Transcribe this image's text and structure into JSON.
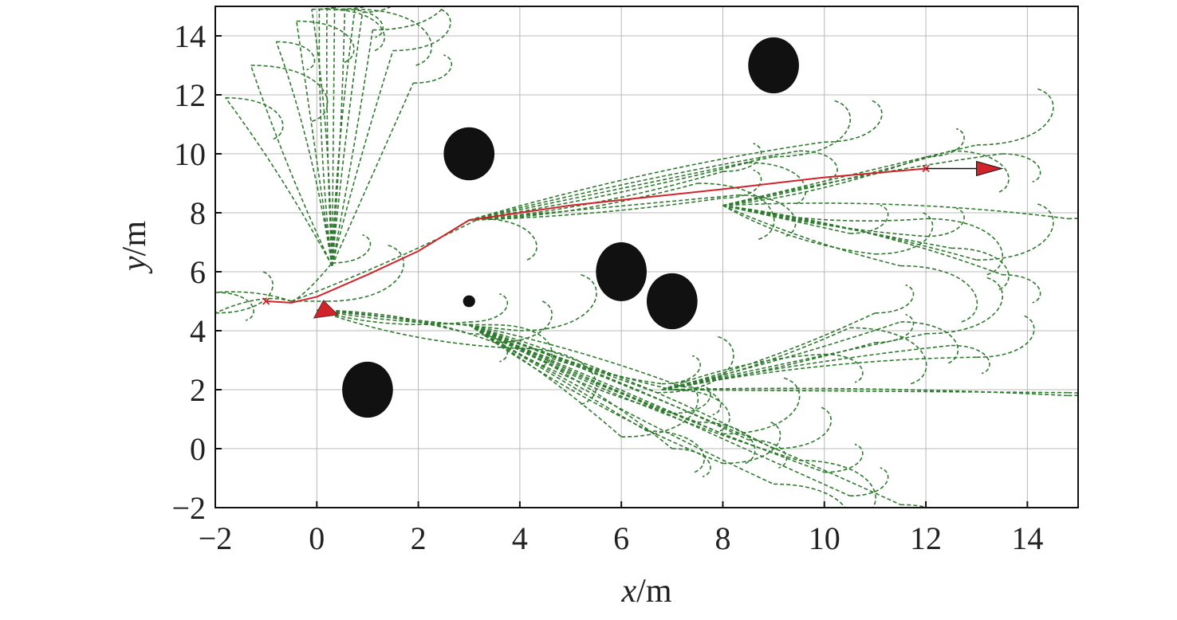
{
  "chart_data": {
    "type": "scatter",
    "title": "",
    "xlabel": {
      "var": "x",
      "unit": "/m"
    },
    "ylabel": {
      "var": "y",
      "unit": "/m"
    },
    "xlim": [
      -2,
      15
    ],
    "ylim": [
      -2,
      15
    ],
    "xticks": [
      -2,
      0,
      2,
      4,
      6,
      8,
      10,
      12,
      14
    ],
    "yticks": [
      -2,
      0,
      2,
      4,
      6,
      8,
      10,
      12,
      14
    ],
    "grid": true,
    "colors": {
      "candidate_trajectories": "#2f7a2f",
      "planned_path": "#d2232a",
      "obstacles": "#111111",
      "goal_arrow": "#111111"
    },
    "obstacles": [
      {
        "cx": 3,
        "cy": 10,
        "rx": 0.5,
        "ry": 0.9
      },
      {
        "cx": 9,
        "cy": 13,
        "rx": 0.5,
        "ry": 0.95
      },
      {
        "cx": 6,
        "cy": 6,
        "rx": 0.5,
        "ry": 1.0
      },
      {
        "cx": 7,
        "cy": 5,
        "rx": 0.5,
        "ry": 0.95
      },
      {
        "cx": 1,
        "cy": 2,
        "rx": 0.5,
        "ry": 0.95
      },
      {
        "cx": 3,
        "cy": 5,
        "rx": 0.12,
        "ry": 0.2
      }
    ],
    "planned_path": [
      [
        -1,
        5
      ],
      [
        -0.5,
        4.95
      ],
      [
        0,
        5.15
      ],
      [
        1,
        5.9
      ],
      [
        2,
        6.7
      ],
      [
        3,
        7.75
      ],
      [
        5,
        8.25
      ],
      [
        8,
        8.8
      ],
      [
        10,
        9.2
      ],
      [
        12,
        9.5
      ]
    ],
    "start_marker": {
      "x": -1,
      "y": 5
    },
    "goal_marker": {
      "x": 12,
      "y": 9.5
    },
    "heading_arrow": {
      "from": [
        12,
        9.5
      ],
      "to": [
        13.5,
        9.5
      ]
    },
    "robot_marker": {
      "x": 0.1,
      "y": 4.65
    },
    "trajectory_fans": [
      {
        "origin": [
          0.3,
          6.2
        ],
        "ends": [
          [
            0.05,
            14.9
          ],
          [
            0.2,
            14.9
          ],
          [
            0.35,
            14.9
          ],
          [
            0.55,
            14.9
          ],
          [
            -0.1,
            14.9
          ],
          [
            0.75,
            14.9
          ],
          [
            0.9,
            14.8
          ],
          [
            -0.4,
            14.5
          ],
          [
            1.1,
            14.2
          ],
          [
            -0.8,
            13.8
          ],
          [
            1.5,
            13.5
          ],
          [
            -1.3,
            13.0
          ],
          [
            1.9,
            12.4
          ],
          [
            -1.8,
            11.9
          ]
        ]
      },
      {
        "origin": [
          0,
          4.7
        ],
        "ends": [
          [
            3,
            4.3
          ],
          [
            3.5,
            4.2
          ],
          [
            4,
            4.0
          ],
          [
            3,
            3.9
          ],
          [
            3.5,
            3.6
          ],
          [
            4,
            3.4
          ]
        ]
      },
      {
        "origin": [
          3,
          4.2
        ],
        "ends": [
          [
            7,
            1.2
          ],
          [
            7.5,
            0.9
          ],
          [
            8,
            0.5
          ],
          [
            8.5,
            0.3
          ],
          [
            9,
            0.0
          ],
          [
            9.5,
            -0.4
          ],
          [
            10,
            -0.8
          ],
          [
            6.5,
            0.6
          ],
          [
            6,
            0.4
          ],
          [
            7,
            0.0
          ],
          [
            8,
            -0.5
          ],
          [
            9,
            -1.2
          ],
          [
            10.5,
            -1.6
          ],
          [
            11.5,
            -1.9
          ]
        ]
      },
      {
        "origin": [
          3,
          4.2
        ],
        "ends": [
          [
            6.8,
            2.2
          ],
          [
            7.0,
            2.0
          ],
          [
            6.7,
            1.9
          ],
          [
            7.2,
            2.1
          ]
        ]
      },
      {
        "origin": [
          6.8,
          2.0
        ],
        "ends": [
          [
            11,
            4.6
          ],
          [
            11.5,
            4.3
          ],
          [
            12,
            3.9
          ],
          [
            12.5,
            3.5
          ],
          [
            13,
            3.1
          ],
          [
            10.5,
            4.1
          ],
          [
            11,
            3.6
          ],
          [
            14.8,
            1.9
          ],
          [
            14.8,
            1.8
          ],
          [
            10,
            3.2
          ]
        ]
      },
      {
        "origin": [
          3,
          7.75
        ],
        "ends": [
          [
            8,
            9.4
          ],
          [
            8.5,
            9.7
          ],
          [
            9,
            9.9
          ],
          [
            9.5,
            10.1
          ],
          [
            10,
            10.4
          ],
          [
            7.5,
            9.0
          ],
          [
            8,
            8.5
          ],
          [
            8.3,
            8.6
          ]
        ]
      },
      {
        "origin": [
          8,
          8.25
        ],
        "ends": [
          [
            12,
            9.9
          ],
          [
            12.5,
            10.1
          ],
          [
            13,
            10.3
          ],
          [
            13.5,
            10.0
          ],
          [
            14.8,
            7.8
          ],
          [
            12,
            7.8
          ],
          [
            12,
            7.2
          ],
          [
            12.5,
            6.8
          ],
          [
            13,
            6.4
          ],
          [
            13.5,
            5.9
          ],
          [
            11,
            6.6
          ],
          [
            11.5,
            6.2
          ],
          [
            10.5,
            7.3
          ]
        ]
      },
      {
        "origin": [
          -0.5,
          5.0
        ],
        "ends": [
          [
            0.3,
            6.3
          ],
          [
            3.2,
            7.8
          ],
          [
            0.2,
            5.0
          ],
          [
            -2,
            5.3
          ],
          [
            -2,
            4.6
          ]
        ]
      }
    ]
  }
}
